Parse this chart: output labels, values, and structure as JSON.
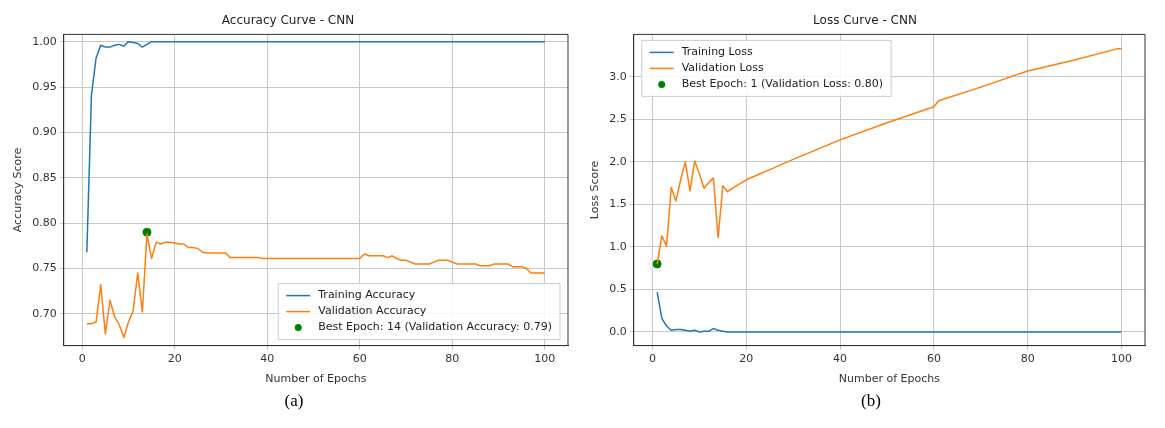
{
  "chart_data": [
    {
      "type": "line",
      "title": "Accuracy Curve - CNN",
      "xlabel": "Number of Epochs",
      "ylabel": "Accuracy Score",
      "xlim": [
        -4,
        105
      ],
      "xticks": [
        0,
        20,
        40,
        60,
        80,
        100
      ],
      "ylim": [
        0.665,
        1.008
      ],
      "yticks": [
        {
          "value": 0.7,
          "label": "0.70"
        },
        {
          "value": 0.75,
          "label": "0.75"
        },
        {
          "value": 0.8,
          "label": "0.80"
        },
        {
          "value": 0.85,
          "label": "0.85"
        },
        {
          "value": 0.9,
          "label": "0.90"
        },
        {
          "value": 0.95,
          "label": "0.95"
        },
        {
          "value": 1.0,
          "label": "1.00"
        }
      ],
      "grid": true,
      "legend": "bottom right",
      "annotations": [
        "(a)"
      ],
      "series": [
        {
          "name": "Training Accuracy",
          "color": "#1f77b4",
          "x": [
            1,
            2,
            3,
            4,
            5,
            6,
            7,
            8,
            9,
            10,
            11,
            12,
            13,
            14,
            15,
            16,
            100
          ],
          "values": [
            0.768,
            0.941,
            0.982,
            0.996,
            0.994,
            0.994,
            0.996,
            0.997,
            0.995,
            1.0,
            0.999,
            0.998,
            0.994,
            0.997,
            1.0,
            1.0,
            1.0
          ]
        },
        {
          "name": "Validation Accuracy",
          "color": "#ff7f0e",
          "x": [
            1,
            2,
            3,
            4,
            5,
            6,
            7,
            8,
            9,
            10,
            11,
            12,
            13,
            14,
            15,
            16,
            17,
            18,
            19,
            20,
            21,
            22,
            23,
            24,
            25,
            26,
            27,
            31,
            32,
            38,
            39,
            60,
            61,
            62,
            65,
            66,
            67,
            68,
            69,
            70,
            71,
            72,
            75,
            76,
            77,
            79,
            80,
            81,
            85,
            86,
            88,
            89,
            92,
            93,
            95,
            96,
            97,
            100
          ],
          "values": [
            0.689,
            0.689,
            0.691,
            0.732,
            0.678,
            0.715,
            0.697,
            0.688,
            0.674,
            0.691,
            0.703,
            0.745,
            0.702,
            0.788,
            0.761,
            0.779,
            0.777,
            0.779,
            0.779,
            0.778,
            0.777,
            0.777,
            0.773,
            0.773,
            0.772,
            0.768,
            0.767,
            0.767,
            0.762,
            0.762,
            0.761,
            0.761,
            0.766,
            0.764,
            0.764,
            0.762,
            0.764,
            0.761,
            0.759,
            0.759,
            0.757,
            0.755,
            0.755,
            0.757,
            0.759,
            0.759,
            0.757,
            0.755,
            0.755,
            0.753,
            0.753,
            0.755,
            0.755,
            0.752,
            0.752,
            0.75,
            0.745,
            0.745
          ]
        },
        {
          "name": "Best Epoch: 14 (Validation Accuracy: 0.79)",
          "type": "scatter",
          "marker": "circle",
          "color": "#008000",
          "x": [
            14
          ],
          "values": [
            0.79
          ]
        }
      ]
    },
    {
      "type": "line",
      "title": "Loss Curve - CNN",
      "xlabel": "Number of Epochs",
      "ylabel": "Loss Score",
      "xlim": [
        -4,
        105
      ],
      "xticks": [
        0,
        20,
        40,
        60,
        80,
        100
      ],
      "ylim": [
        -0.16,
        3.5
      ],
      "yticks": [
        {
          "value": 0,
          "label": "0.0"
        },
        {
          "value": 0.5,
          "label": "0.5"
        },
        {
          "value": 1,
          "label": "1.0"
        },
        {
          "value": 1.5,
          "label": "1.5"
        },
        {
          "value": 2,
          "label": "2.0"
        },
        {
          "value": 2.5,
          "label": "2.5"
        },
        {
          "value": 3,
          "label": "3.0"
        }
      ],
      "grid": true,
      "legend": "top left",
      "annotations": [
        "(b)"
      ],
      "series": [
        {
          "name": "Training Loss",
          "color": "#1f77b4",
          "x": [
            1,
            2,
            3,
            4,
            5,
            6,
            7,
            8,
            9,
            10,
            11,
            12,
            13,
            14,
            15,
            16,
            100
          ],
          "values": [
            0.47,
            0.16,
            0.07,
            0.02,
            0.03,
            0.03,
            0.02,
            0.01,
            0.02,
            0.0,
            0.01,
            0.01,
            0.04,
            0.02,
            0.01,
            0.0,
            0.0
          ]
        },
        {
          "name": "Validation Loss",
          "color": "#ff7f0e",
          "x": [
            1,
            2,
            3,
            4,
            5,
            6,
            7,
            8,
            9,
            10,
            11,
            12,
            13,
            14,
            15,
            16,
            17,
            20,
            30,
            40,
            50,
            60,
            61,
            70,
            80,
            90,
            99,
            100
          ],
          "values": [
            0.8,
            1.13,
            1.01,
            1.7,
            1.54,
            1.79,
            2.0,
            1.66,
            2.01,
            1.86,
            1.69,
            1.76,
            1.81,
            1.11,
            1.72,
            1.65,
            1.69,
            1.79,
            2.03,
            2.26,
            2.46,
            2.65,
            2.72,
            2.88,
            3.07,
            3.2,
            3.33,
            3.33
          ]
        },
        {
          "name": "Best Epoch: 1 (Validation Loss: 0.80)",
          "type": "scatter",
          "marker": "circle",
          "color": "#008000",
          "x": [
            1
          ],
          "values": [
            0.8
          ]
        }
      ]
    }
  ]
}
